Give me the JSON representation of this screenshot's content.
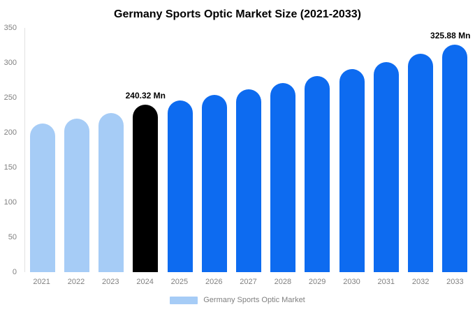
{
  "chart_data": {
    "type": "bar",
    "title": "Germany Sports Optic Market Size (2021-2033)",
    "categories": [
      "2021",
      "2022",
      "2023",
      "2024",
      "2025",
      "2026",
      "2027",
      "2028",
      "2029",
      "2030",
      "2031",
      "2032",
      "2033"
    ],
    "values": [
      213,
      220,
      228,
      240.32,
      246,
      254,
      262,
      271,
      281,
      291,
      301,
      313,
      325.88
    ],
    "bar_colors": [
      "#a6ccf6",
      "#a6ccf6",
      "#a6ccf6",
      "#000000",
      "#0d6bf0",
      "#0d6bf0",
      "#0d6bf0",
      "#0d6bf0",
      "#0d6bf0",
      "#0d6bf0",
      "#0d6bf0",
      "#0d6bf0",
      "#0d6bf0"
    ],
    "annotations": [
      {
        "index": 3,
        "text": "240.32 Mn"
      },
      {
        "index": 12,
        "text": "325.88 Mn"
      }
    ],
    "y_ticks": [
      0,
      50,
      100,
      150,
      200,
      250,
      300,
      350
    ],
    "ylim": [
      0,
      350
    ],
    "xlabel": "",
    "ylabel": "",
    "grid": false,
    "legend": "Germany Sports Optic Market",
    "legend_position": "bottom"
  },
  "colors": {
    "light_blue": "#a6ccf6",
    "blue": "#0d6bf0",
    "highlight_black": "#000000",
    "axis_text": "#808080",
    "background": "#ffffff"
  }
}
